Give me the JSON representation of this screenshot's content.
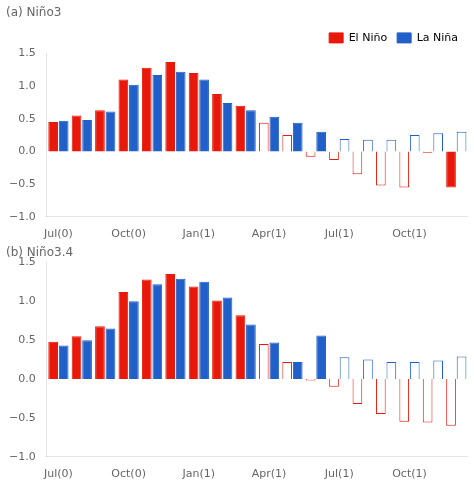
{
  "chart_data": [
    {
      "type": "bar",
      "title": "(a) Niño3",
      "categories": [
        "Jul(0)",
        null,
        null,
        "Oct(0)",
        null,
        null,
        "Jan(1)",
        null,
        null,
        "Apr(1)",
        null,
        null,
        "Jul(1)",
        null,
        null,
        "Oct(1)",
        null,
        null
      ],
      "series": [
        {
          "name": "El Niño",
          "color": "#e8190a",
          "colors": [
            "#e8190a",
            "#e8190a",
            "#e8190a",
            "#e8190a",
            "#e8190a",
            "#e8190a",
            "#e8190a",
            "#e8190a",
            "#e8190a",
            "#ffffff",
            "#ffffff",
            "#ffffff",
            "#ffffff",
            "#ffffff",
            "#ffffff",
            "#ffffff",
            "#ffffff",
            "#e8190a"
          ],
          "values": [
            0.45,
            0.55,
            0.63,
            1.1,
            1.28,
            1.37,
            1.2,
            0.88,
            0.7,
            0.44,
            0.25,
            -0.08,
            -0.13,
            -0.35,
            -0.52,
            -0.55,
            -0.02,
            -0.55
          ]
        },
        {
          "name": "La Niña",
          "color": "#2060c8",
          "colors": [
            "#2060c8",
            "#2060c8",
            "#2060c8",
            "#2060c8",
            "#2060c8",
            "#2060c8",
            "#2060c8",
            "#2060c8",
            "#2060c8",
            "#2060c8",
            "#2060c8",
            "#2060c8",
            "#ffffff",
            "#ffffff",
            "#ffffff",
            "#ffffff",
            "#ffffff",
            "#ffffff"
          ],
          "values": [
            0.47,
            0.48,
            0.61,
            1.02,
            1.17,
            1.22,
            1.1,
            0.74,
            0.63,
            0.53,
            0.44,
            0.3,
            0.19,
            0.18,
            0.18,
            0.25,
            0.28,
            0.3
          ]
        }
      ],
      "ylim": [
        -1.0,
        1.5
      ],
      "yticks": [
        {
          "value": -1.0,
          "label": "−1.0"
        },
        {
          "value": -0.5,
          "label": "−0.5"
        },
        {
          "value": 0.0,
          "label": "0.0"
        },
        0.5,
        {
          "value": 1.0,
          "label": "1.0"
        },
        1.5
      ],
      "grid": false,
      "legend": "upper right"
    },
    {
      "type": "bar",
      "title": "(b) Niño3.4",
      "categories": [
        "Jul(0)",
        null,
        null,
        "Oct(0)",
        null,
        null,
        "Jan(1)",
        null,
        null,
        "Apr(1)",
        null,
        null,
        "Jul(1)",
        null,
        null,
        "Oct(1)",
        null,
        null
      ],
      "series": [
        {
          "name": "El Niño",
          "color": "#e8190a",
          "colors": [
            "#e8190a",
            "#e8190a",
            "#e8190a",
            "#e8190a",
            "#e8190a",
            "#e8190a",
            "#e8190a",
            "#e8190a",
            "#e8190a",
            "#ffffff",
            "#ffffff",
            "#ffffff",
            "#ffffff",
            "#ffffff",
            "#ffffff",
            "#ffffff",
            "#ffffff",
            "#ffffff"
          ],
          "values": [
            0.48,
            0.55,
            0.68,
            1.12,
            1.28,
            1.35,
            1.19,
            1.01,
            0.82,
            0.45,
            0.22,
            -0.02,
            -0.1,
            -0.32,
            -0.45,
            -0.55,
            -0.56,
            -0.6
          ]
        },
        {
          "name": "La Niña",
          "color": "#2060c8",
          "colors": [
            "#2060c8",
            "#2060c8",
            "#2060c8",
            "#2060c8",
            "#2060c8",
            "#2060c8",
            "#2060c8",
            "#2060c8",
            "#2060c8",
            "#2060c8",
            "#2060c8",
            "#2060c8",
            "#ffffff",
            "#ffffff",
            "#ffffff",
            "#ffffff",
            "#ffffff",
            "#ffffff"
          ],
          "values": [
            0.43,
            0.5,
            0.65,
            1.0,
            1.22,
            1.29,
            1.25,
            1.05,
            0.7,
            0.47,
            0.22,
            0.56,
            0.28,
            0.25,
            0.22,
            0.22,
            0.24,
            0.29
          ]
        }
      ],
      "ylim": [
        -1.0,
        1.5
      ],
      "yticks": [
        {
          "value": -1.0,
          "label": "−1.0"
        },
        {
          "value": -0.5,
          "label": "−0.5"
        },
        {
          "value": 0.0,
          "label": "0.0"
        },
        0.5,
        {
          "value": 1.0,
          "label": "1.0"
        },
        1.5
      ],
      "grid": false
    }
  ]
}
